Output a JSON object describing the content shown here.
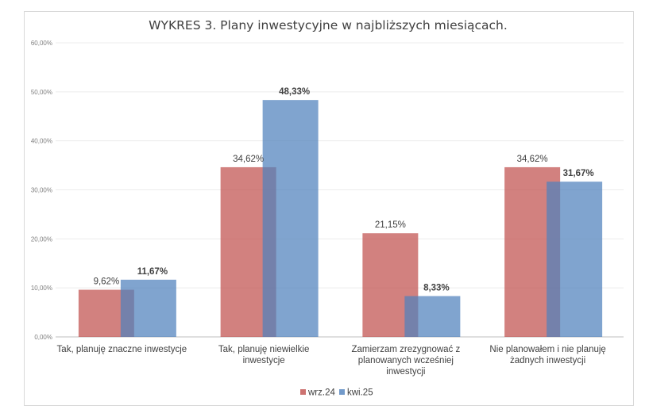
{
  "chart_data": {
    "type": "bar",
    "title": "WYKRES 3. Plany inwestycyjne w najbliższych miesiącach.",
    "categories": [
      [
        "Tak, planuję znaczne inwestycje"
      ],
      [
        "Tak, planuję niewielkie",
        "inwestycje"
      ],
      [
        "Zamierzam zrezygnować z",
        "planowanych wcześniej",
        "inwestycji"
      ],
      [
        "Nie planowałem i nie planuję",
        "żadnych inwestycji"
      ]
    ],
    "series": [
      {
        "name": "wrz.24",
        "values": [
          9.62,
          34.62,
          21.15,
          34.62
        ],
        "labels": [
          "9,62%",
          "34,62%",
          "21,15%",
          "34,62%"
        ],
        "color": "#c0504d"
      },
      {
        "name": "kwi.25",
        "values": [
          11.67,
          48.33,
          8.33,
          31.67
        ],
        "labels": [
          "11,67%",
          "48,33%",
          "8,33%",
          "31,67%"
        ],
        "color": "#4f81bd"
      }
    ],
    "yticks": [
      "0,00%",
      "10,00%",
      "20,00%",
      "30,00%",
      "40,00%",
      "50,00%",
      "60,00%"
    ],
    "ylim": [
      0,
      60
    ],
    "grid": true,
    "legend": "bottom-center",
    "xlabel": "",
    "ylabel": ""
  }
}
